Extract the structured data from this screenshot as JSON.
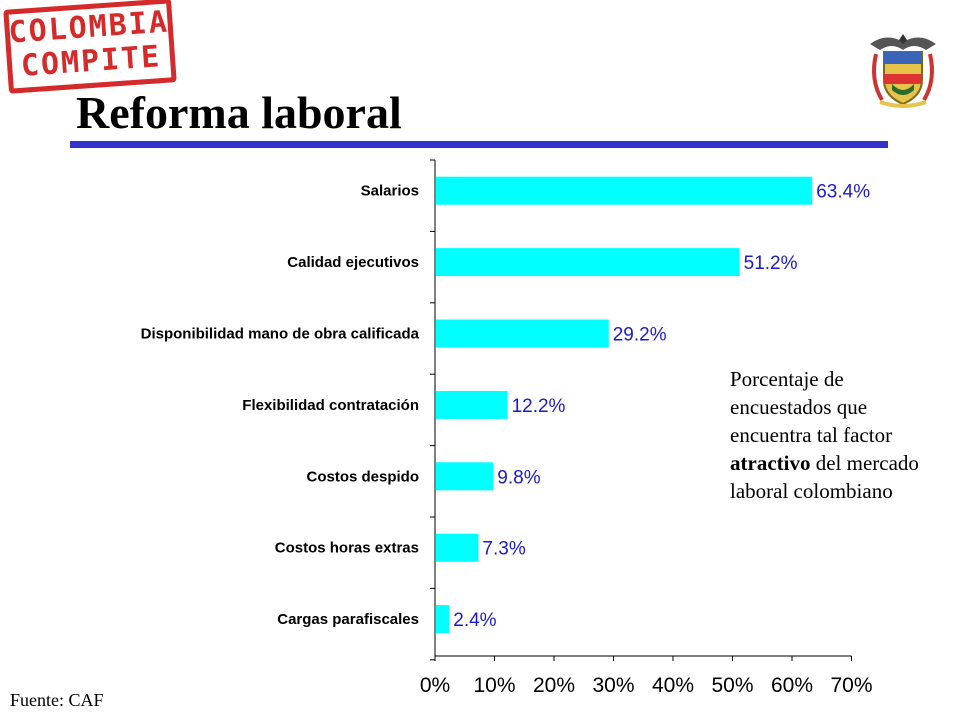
{
  "logo": {
    "line1": "COLOMBIA",
    "line2": "COMPITE"
  },
  "crest_icon": "coat-of-arms-icon",
  "title": "Reforma laboral",
  "note": {
    "part1": "Porcentaje de encuestados que encuentra tal factor",
    "emphasis": "atractivo",
    "part2": "del mercado laboral colombiano"
  },
  "source": "Fuente: CAF",
  "colors": {
    "bar": "#00ffff",
    "value_text": "#1a1acc",
    "rule": "#3333cc",
    "stamp": "#d42a2a"
  },
  "chart_data": {
    "type": "bar",
    "orientation": "horizontal",
    "categories": [
      "Salarios",
      "Calidad ejecutivos",
      "Disponibilidad mano de obra calificada",
      "Flexibilidad contratación",
      "Costos despido",
      "Costos horas extras",
      "Cargas parafiscales"
    ],
    "values": [
      63.4,
      51.2,
      29.2,
      12.2,
      9.8,
      7.3,
      2.4
    ],
    "value_labels": [
      "63.4%",
      "51.2%",
      "29.2%",
      "12.2%",
      "9.8%",
      "7.3%",
      "2.4%"
    ],
    "xlim": [
      0,
      70
    ],
    "xticks": [
      0,
      10,
      20,
      30,
      40,
      50,
      60,
      70
    ],
    "xtick_labels": [
      "0%",
      "10%",
      "20%",
      "30%",
      "40%",
      "50%",
      "60%",
      "70%"
    ],
    "grid": false,
    "legend": "none"
  }
}
